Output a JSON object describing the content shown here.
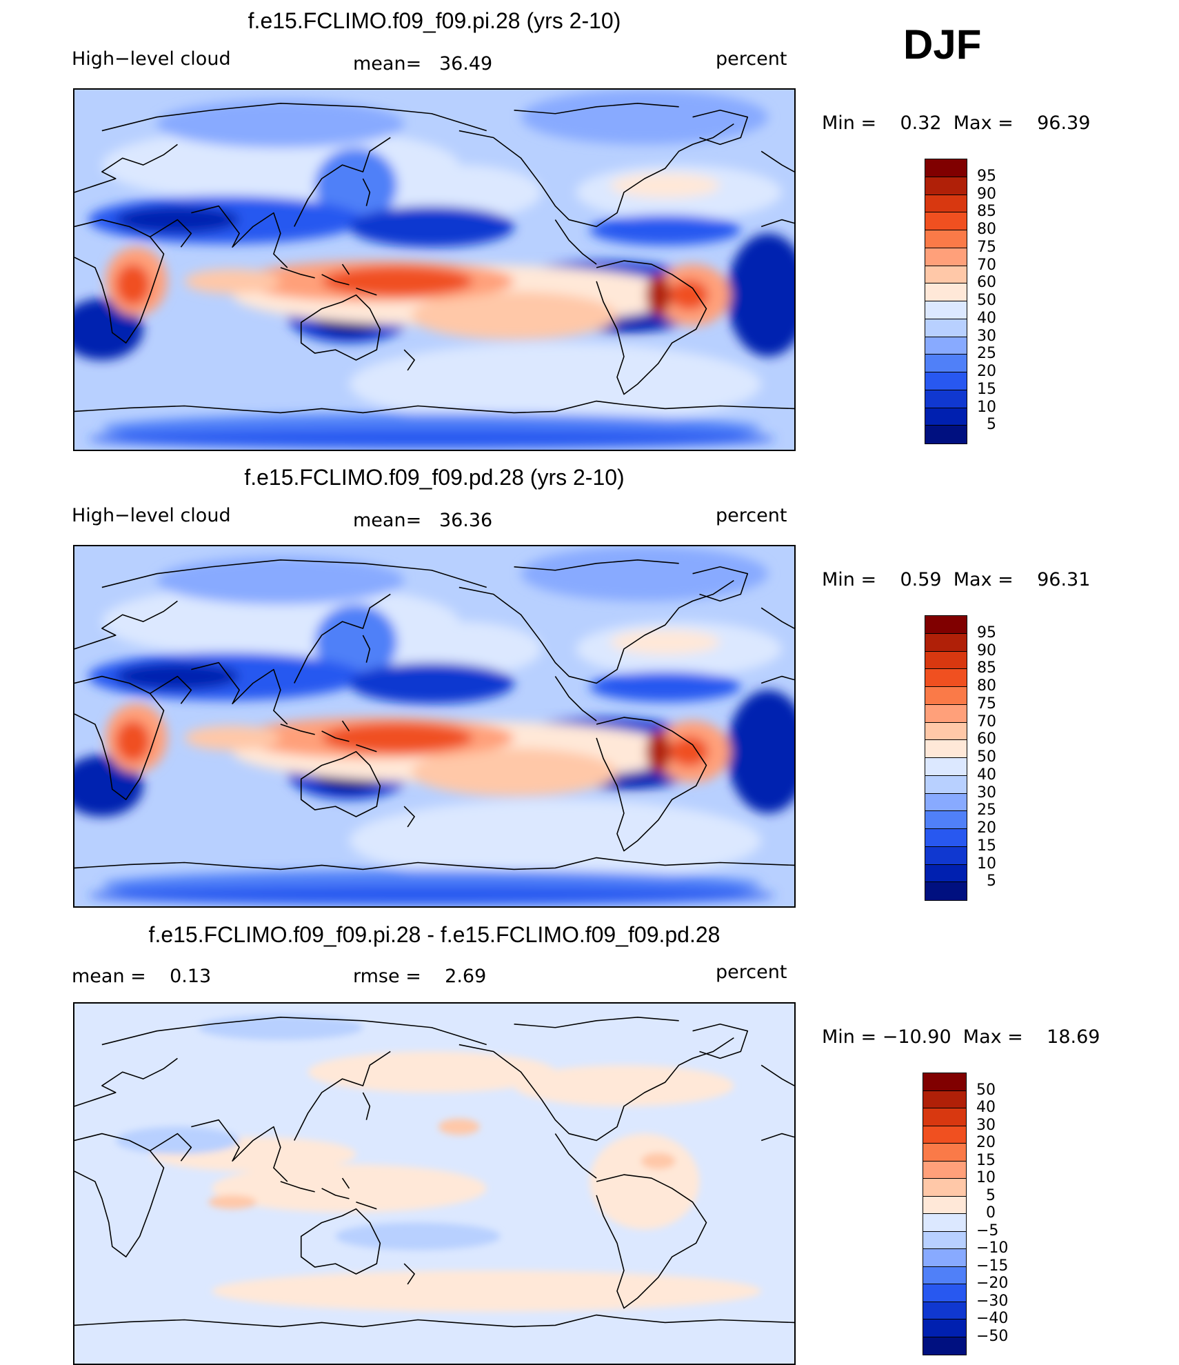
{
  "figure": {
    "season": "DJF"
  },
  "panels": [
    {
      "title": "f.e15.FCLIMO.f09_f09.pi.28 (yrs 2-10)",
      "left_label": "High−level cloud",
      "center_label": "mean=   36.49",
      "right_label": "percent",
      "minmax": "Min =    0.32  Max =    96.39",
      "colorbar": {
        "levels": [
          "95",
          "90",
          "85",
          "80",
          "75",
          "70",
          "60",
          "50",
          "40",
          "30",
          "25",
          "20",
          "15",
          "10",
          "5"
        ],
        "colors": [
          "#800000",
          "#B02008",
          "#D83810",
          "#F05020",
          "#FA7A48",
          "#FFA07A",
          "#FFC8A8",
          "#FFE8D8",
          "#DCE8FF",
          "#B8D0FF",
          "#88AAFF",
          "#5080F8",
          "#2858F0",
          "#1038D0",
          "#0020B0",
          "#001080"
        ]
      },
      "map": {
        "field": "full"
      }
    },
    {
      "title": "f.e15.FCLIMO.f09_f09.pd.28 (yrs 2-10)",
      "left_label": "High−level cloud",
      "center_label": "mean=   36.36",
      "right_label": "percent",
      "minmax": "Min =    0.59  Max =    96.31",
      "colorbar": {
        "levels": [
          "95",
          "90",
          "85",
          "80",
          "75",
          "70",
          "60",
          "50",
          "40",
          "30",
          "25",
          "20",
          "15",
          "10",
          "5"
        ],
        "colors": [
          "#800000",
          "#B02008",
          "#D83810",
          "#F05020",
          "#FA7A48",
          "#FFA07A",
          "#FFC8A8",
          "#FFE8D8",
          "#DCE8FF",
          "#B8D0FF",
          "#88AAFF",
          "#5080F8",
          "#2858F0",
          "#1038D0",
          "#0020B0",
          "#001080"
        ]
      },
      "map": {
        "field": "full"
      }
    },
    {
      "title": "f.e15.FCLIMO.f09_f09.pi.28 - f.e15.FCLIMO.f09_f09.pd.28",
      "left_label": "mean =    0.13",
      "center_label": "rmse =    2.69",
      "right_label": "percent",
      "minmax": "Min = −10.90  Max =    18.69",
      "colorbar": {
        "levels": [
          "50",
          "40",
          "30",
          "20",
          "15",
          "10",
          "5",
          "0",
          "−5",
          "−10",
          "−15",
          "−20",
          "−30",
          "−40",
          "−50"
        ],
        "colors": [
          "#800000",
          "#B02008",
          "#D83810",
          "#F05020",
          "#FA7A48",
          "#FFA07A",
          "#FFC8A8",
          "#FFE8D8",
          "#DCE8FF",
          "#B8D0FF",
          "#88AAFF",
          "#5080F8",
          "#2858F0",
          "#1038D0",
          "#0020B0",
          "#001080"
        ]
      },
      "map": {
        "field": "difference"
      }
    }
  ]
}
